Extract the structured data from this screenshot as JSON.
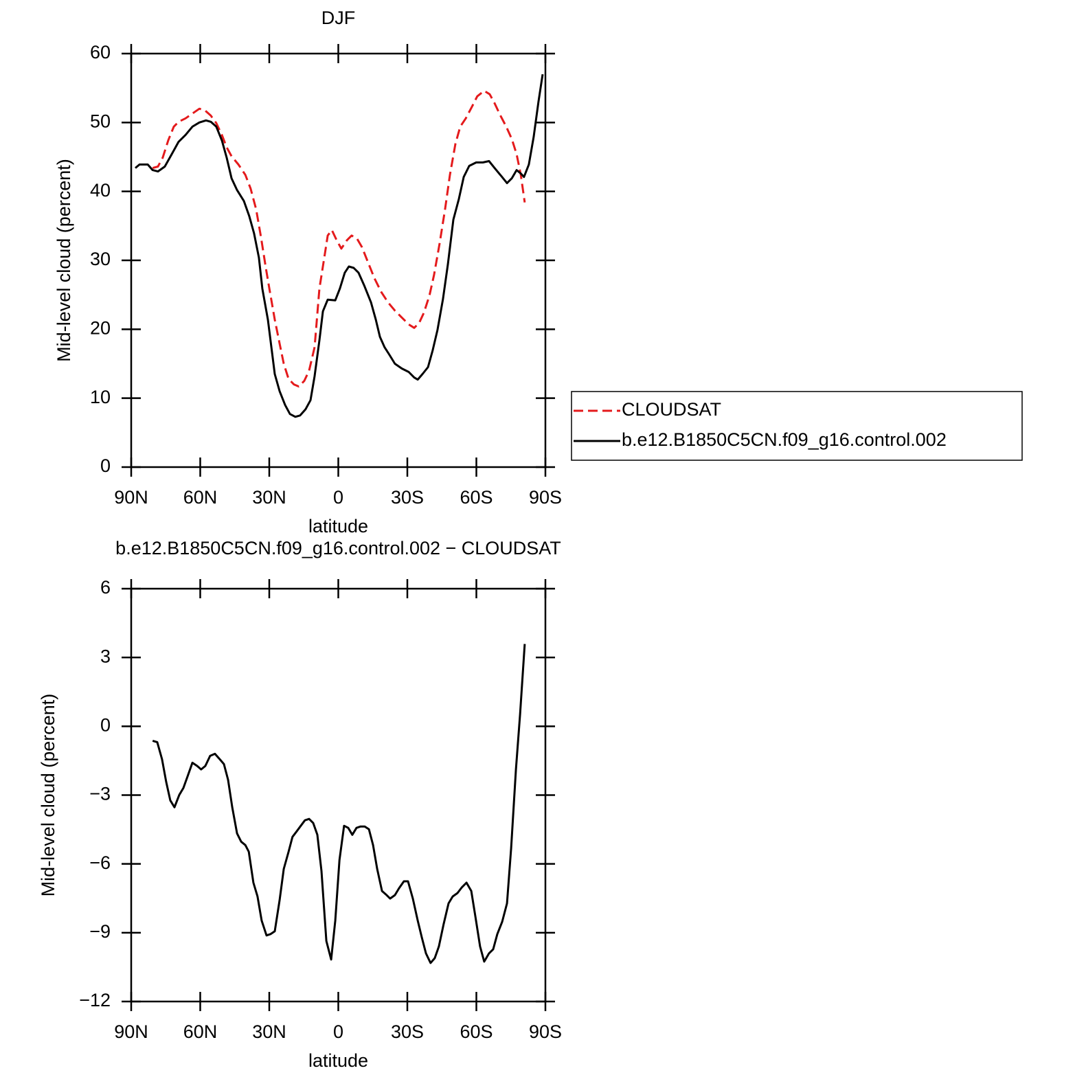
{
  "chart_data": [
    {
      "type": "line",
      "title": "DJF",
      "xlabel": "latitude",
      "ylabel": "Mid-level cloud (percent)",
      "xlim": [
        90,
        -90
      ],
      "ylim": [
        0,
        60
      ],
      "xticks": [
        {
          "value": 90,
          "label": "90N"
        },
        {
          "value": 60,
          "label": "60N"
        },
        {
          "value": 30,
          "label": "30N"
        },
        0,
        {
          "value": -30,
          "label": "30S"
        },
        {
          "value": -60,
          "label": "60S"
        },
        {
          "value": -90,
          "label": "90S"
        }
      ],
      "yticks": [
        0,
        10,
        20,
        30,
        40,
        50,
        60
      ],
      "legend": "right",
      "series": [
        {
          "name": "CLOUDSAT",
          "color": "#e41a1c",
          "dash": true,
          "x": [
            80.7,
            78.4,
            76.3,
            73.9,
            71.5,
            69.4,
            66.4,
            63.4,
            60.4,
            58.1,
            55.4,
            53.0,
            50.6,
            48.5,
            46.4,
            43.4,
            40.4,
            38.1,
            35.7,
            33.6,
            31.5,
            29.7,
            27.6,
            25.5,
            23.7,
            21.6,
            19.3,
            17.2,
            14.8,
            12.7,
            10.3,
            8.2,
            6.1,
            4.6,
            2.8,
            0.7,
            -1.3,
            -3.7,
            -5.8,
            -8.2,
            -10.3,
            -12.7,
            -15.7,
            -18.7,
            -21.6,
            -24.6,
            -27.6,
            -30.6,
            -33.0,
            -35.1,
            -37.2,
            -39.6,
            -41.6,
            -44.0,
            -46.4,
            -48.5,
            -50.9,
            -53.0,
            -55.4,
            -58.1,
            -60.4,
            -63.4,
            -65.8,
            -67.9,
            -70.3,
            -73.0,
            -75.4,
            -77.5,
            -79.3,
            -81.0
          ],
          "values": [
            43.4,
            43.6,
            44.9,
            47.4,
            49.4,
            50.1,
            50.6,
            51.3,
            52.0,
            51.8,
            51.0,
            49.9,
            48.2,
            46.4,
            45.1,
            43.9,
            42.4,
            40.4,
            37.4,
            33.4,
            28.9,
            25.4,
            21.4,
            17.9,
            15.0,
            12.8,
            12.0,
            11.7,
            12.5,
            14.0,
            17.4,
            25.9,
            30.4,
            33.6,
            34.4,
            32.9,
            31.7,
            32.9,
            33.6,
            33.1,
            31.9,
            29.9,
            27.4,
            25.4,
            23.9,
            22.7,
            21.7,
            20.7,
            20.2,
            20.9,
            22.4,
            24.9,
            27.9,
            32.4,
            37.4,
            42.4,
            46.9,
            49.4,
            50.6,
            52.3,
            53.8,
            54.6,
            54.1,
            52.8,
            51.1,
            49.4,
            47.6,
            45.4,
            42.4,
            38.4
          ]
        },
        {
          "name": "b.e12.B1850C5CN.f09_g16.control.002",
          "color": "#000000",
          "dash": false,
          "x": [
            88.2,
            86.4,
            82.8,
            80.7,
            78.4,
            75.4,
            72.4,
            69.4,
            66.4,
            63.4,
            60.4,
            57.5,
            55.4,
            53.0,
            50.6,
            48.5,
            46.4,
            44.0,
            41.0,
            38.7,
            36.6,
            34.5,
            33.0,
            30.6,
            27.6,
            25.5,
            23.1,
            21.0,
            18.7,
            16.6,
            14.2,
            12.1,
            10.3,
            8.2,
            6.7,
            4.6,
            1.3,
            -0.7,
            -2.8,
            -4.6,
            -6.7,
            -8.8,
            -11.2,
            -14.2,
            -16.3,
            -18.1,
            -20.1,
            -22.2,
            -24.6,
            -27.6,
            -30.6,
            -33.0,
            -34.5,
            -36.6,
            -39.0,
            -41.0,
            -43.1,
            -45.5,
            -47.6,
            -50.0,
            -52.4,
            -54.5,
            -56.9,
            -59.9,
            -62.8,
            -65.5,
            -67.9,
            -70.9,
            -73.3,
            -75.4,
            -77.5,
            -79.3,
            -80.7,
            -82.8,
            -84.9,
            -87.0,
            -88.8
          ],
          "values": [
            43.4,
            43.9,
            43.9,
            43.1,
            42.9,
            43.6,
            45.4,
            47.2,
            48.2,
            49.4,
            50.0,
            50.3,
            50.1,
            49.4,
            47.4,
            44.9,
            41.9,
            40.2,
            38.6,
            36.4,
            33.9,
            30.4,
            25.9,
            21.4,
            13.5,
            11.0,
            9.0,
            7.7,
            7.3,
            7.5,
            8.4,
            9.7,
            13.2,
            18.4,
            22.6,
            24.3,
            24.2,
            25.9,
            28.2,
            29.1,
            28.9,
            28.2,
            26.4,
            23.9,
            21.4,
            18.9,
            17.4,
            16.3,
            15.0,
            14.3,
            13.8,
            13.0,
            12.7,
            13.5,
            14.5,
            16.9,
            19.9,
            24.4,
            29.4,
            35.9,
            38.9,
            42.1,
            43.7,
            44.2,
            44.2,
            44.4,
            43.4,
            42.2,
            41.2,
            41.9,
            43.1,
            42.6,
            42.1,
            43.9,
            47.9,
            53.0,
            57.0
          ]
        }
      ]
    },
    {
      "type": "line",
      "title": "b.e12.B1850C5CN.f09_g16.control.002 − CLOUDSAT",
      "xlabel": "latitude",
      "ylabel": "Mid-level cloud (percent)",
      "xlim": [
        90,
        -90
      ],
      "ylim": [
        -12,
        6
      ],
      "xticks": [
        {
          "value": 90,
          "label": "90N"
        },
        {
          "value": 60,
          "label": "60N"
        },
        {
          "value": 30,
          "label": "30N"
        },
        0,
        {
          "value": -30,
          "label": "30S"
        },
        {
          "value": -60,
          "label": "60S"
        },
        {
          "value": -90,
          "label": "90S"
        }
      ],
      "yticks": [
        {
          "value": -12,
          "label": "−12"
        },
        {
          "value": -9,
          "label": "−9"
        },
        {
          "value": -6,
          "label": "−6"
        },
        {
          "value": -3,
          "label": "−3"
        },
        0,
        3,
        6
      ],
      "series": [
        {
          "color": "#000000",
          "dash": false,
          "x": [
            80.7,
            78.7,
            76.6,
            74.8,
            73.0,
            71.2,
            69.1,
            67.3,
            65.5,
            63.4,
            61.3,
            59.6,
            57.8,
            55.7,
            53.6,
            51.5,
            49.7,
            47.9,
            46.1,
            44.0,
            42.2,
            40.4,
            38.9,
            36.9,
            35.1,
            33.3,
            31.2,
            29.4,
            27.6,
            25.5,
            23.7,
            21.6,
            19.9,
            18.1,
            16.3,
            14.5,
            12.7,
            10.9,
            9.1,
            7.3,
            5.2,
            3.1,
            1.3,
            -0.5,
            -2.5,
            -4.3,
            -6.1,
            -7.9,
            -9.7,
            -11.5,
            -13.3,
            -15.1,
            -16.9,
            -19.0,
            -20.7,
            -22.5,
            -24.6,
            -26.4,
            -28.5,
            -30.3,
            -32.4,
            -34.5,
            -36.3,
            -38.1,
            -40.1,
            -41.9,
            -43.7,
            -45.8,
            -47.9,
            -49.7,
            -51.8,
            -53.6,
            -55.7,
            -57.8,
            -59.6,
            -61.6,
            -63.4,
            -65.5,
            -67.3,
            -69.1,
            -71.2,
            -73.3,
            -75.1,
            -77.2,
            -79.0,
            -81.0
          ],
          "values": [
            -0.63,
            -0.69,
            -1.44,
            -2.42,
            -3.23,
            -3.53,
            -2.99,
            -2.69,
            -2.18,
            -1.59,
            -1.73,
            -1.88,
            -1.73,
            -1.29,
            -1.2,
            -1.44,
            -1.65,
            -2.33,
            -3.53,
            -4.67,
            -5.03,
            -5.18,
            -5.47,
            -6.82,
            -7.42,
            -8.47,
            -9.12,
            -9.06,
            -8.94,
            -7.57,
            -6.22,
            -5.47,
            -4.82,
            -4.58,
            -4.34,
            -4.1,
            -4.04,
            -4.22,
            -4.73,
            -6.31,
            -9.36,
            -10.17,
            -8.47,
            -5.83,
            -4.34,
            -4.43,
            -4.73,
            -4.43,
            -4.37,
            -4.37,
            -4.49,
            -5.18,
            -6.22,
            -7.18,
            -7.33,
            -7.51,
            -7.36,
            -7.06,
            -6.76,
            -6.76,
            -7.51,
            -8.47,
            -9.21,
            -9.9,
            -10.32,
            -10.11,
            -9.6,
            -8.62,
            -7.72,
            -7.42,
            -7.27,
            -7.03,
            -6.82,
            -7.18,
            -8.32,
            -9.6,
            -10.26,
            -9.9,
            -9.72,
            -9.06,
            -8.53,
            -7.72,
            -5.32,
            -1.88,
            0.51,
            3.59
          ]
        }
      ]
    }
  ]
}
